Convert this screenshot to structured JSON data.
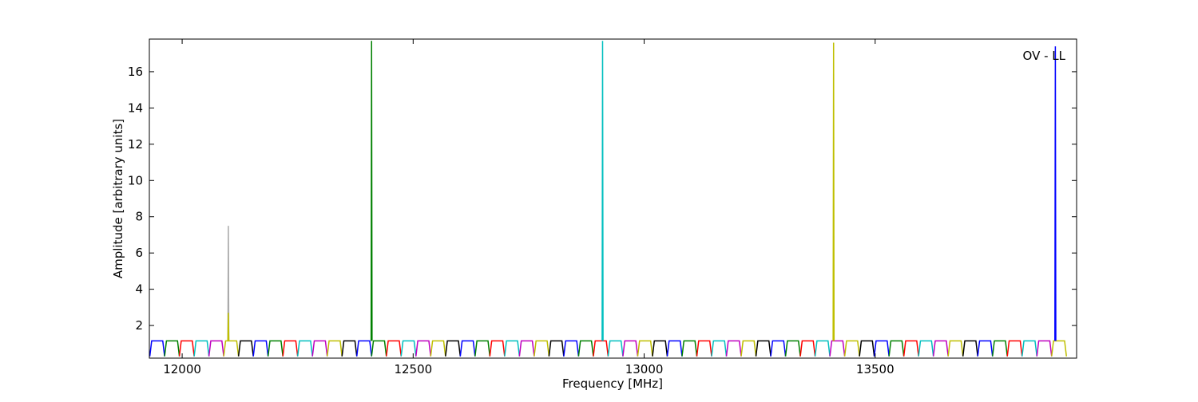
{
  "chart_data": {
    "type": "line",
    "x_label": "Frequency [MHz]",
    "y_label": "Amplitude [arbitrary units]",
    "annotation": "OV - LL",
    "xlim": [
      11929,
      13936
    ],
    "ylim": [
      0.2,
      17.8
    ],
    "xticks": [
      12000,
      12500,
      13000,
      13500
    ],
    "yticks": [
      2,
      4,
      6,
      8,
      10,
      12,
      14,
      16
    ],
    "series": [
      {
        "color": "#0000ff",
        "x": [
          11930,
          11934,
          11958,
          11962
        ],
        "values": [
          0.3,
          1.15,
          1.15,
          0.3
        ]
      },
      {
        "color": "#008000",
        "x": [
          11962,
          11966,
          11990,
          11994
        ],
        "values": [
          0.3,
          1.15,
          1.15,
          0.3
        ]
      },
      {
        "color": "#ff0000",
        "x": [
          11994,
          11998,
          12022,
          12026
        ],
        "values": [
          0.3,
          1.15,
          1.15,
          0.3
        ]
      },
      {
        "color": "#00bfbf",
        "x": [
          12026,
          12030,
          12054,
          12058
        ],
        "values": [
          0.3,
          1.15,
          1.15,
          0.3
        ]
      },
      {
        "color": "#bf00bf",
        "x": [
          12058,
          12062,
          12086,
          12090
        ],
        "values": [
          0.3,
          1.15,
          1.15,
          0.3
        ]
      },
      {
        "color": "#bfbf00",
        "x": [
          12090,
          12094,
          12118,
          12122
        ],
        "values": [
          0.3,
          1.15,
          1.15,
          0.3
        ]
      },
      {
        "color": "#000000",
        "x": [
          12122,
          12126,
          12150,
          12154
        ],
        "values": [
          0.3,
          1.15,
          1.15,
          0.3
        ]
      },
      {
        "color": "#0000ff",
        "x": [
          12154,
          12158,
          12182,
          12186
        ],
        "values": [
          0.3,
          1.15,
          1.15,
          0.3
        ]
      },
      {
        "color": "#008000",
        "x": [
          12186,
          12190,
          12214,
          12218
        ],
        "values": [
          0.3,
          1.15,
          1.15,
          0.3
        ]
      },
      {
        "color": "#ff0000",
        "x": [
          12218,
          12222,
          12246,
          12250
        ],
        "values": [
          0.3,
          1.15,
          1.15,
          0.3
        ]
      },
      {
        "color": "#00bfbf",
        "x": [
          12250,
          12254,
          12278,
          12282
        ],
        "values": [
          0.3,
          1.15,
          1.15,
          0.3
        ]
      },
      {
        "color": "#bf00bf",
        "x": [
          12282,
          12286,
          12310,
          12314
        ],
        "values": [
          0.3,
          1.15,
          1.15,
          0.3
        ]
      },
      {
        "color": "#bfbf00",
        "x": [
          12314,
          12318,
          12342,
          12346
        ],
        "values": [
          0.3,
          1.15,
          1.15,
          0.3
        ]
      },
      {
        "color": "#000000",
        "x": [
          12346,
          12350,
          12374,
          12378
        ],
        "values": [
          0.3,
          1.15,
          1.15,
          0.3
        ]
      },
      {
        "color": "#0000ff",
        "x": [
          12378,
          12382,
          12406,
          12410
        ],
        "values": [
          0.3,
          1.15,
          1.15,
          0.3
        ]
      },
      {
        "color": "#008000",
        "x": [
          12410,
          12414,
          12438,
          12442
        ],
        "values": [
          0.3,
          1.15,
          1.15,
          0.3
        ]
      },
      {
        "color": "#ff0000",
        "x": [
          12442,
          12446,
          12470,
          12474
        ],
        "values": [
          0.3,
          1.15,
          1.15,
          0.3
        ]
      },
      {
        "color": "#00bfbf",
        "x": [
          12474,
          12478,
          12502,
          12506
        ],
        "values": [
          0.3,
          1.15,
          1.15,
          0.3
        ]
      },
      {
        "color": "#bf00bf",
        "x": [
          12506,
          12510,
          12534,
          12538
        ],
        "values": [
          0.3,
          1.15,
          1.15,
          0.3
        ]
      },
      {
        "color": "#bfbf00",
        "x": [
          12538,
          12542,
          12566,
          12570
        ],
        "values": [
          0.3,
          1.15,
          1.15,
          0.3
        ]
      },
      {
        "color": "#000000",
        "x": [
          12570,
          12574,
          12598,
          12602
        ],
        "values": [
          0.3,
          1.15,
          1.15,
          0.3
        ]
      },
      {
        "color": "#0000ff",
        "x": [
          12602,
          12606,
          12630,
          12634
        ],
        "values": [
          0.3,
          1.15,
          1.15,
          0.3
        ]
      },
      {
        "color": "#008000",
        "x": [
          12634,
          12638,
          12662,
          12666
        ],
        "values": [
          0.3,
          1.15,
          1.15,
          0.3
        ]
      },
      {
        "color": "#ff0000",
        "x": [
          12666,
          12670,
          12694,
          12698
        ],
        "values": [
          0.3,
          1.15,
          1.15,
          0.3
        ]
      },
      {
        "color": "#00bfbf",
        "x": [
          12698,
          12702,
          12726,
          12730
        ],
        "values": [
          0.3,
          1.15,
          1.15,
          0.3
        ]
      },
      {
        "color": "#bf00bf",
        "x": [
          12730,
          12734,
          12758,
          12762
        ],
        "values": [
          0.3,
          1.15,
          1.15,
          0.3
        ]
      },
      {
        "color": "#bfbf00",
        "x": [
          12762,
          12766,
          12790,
          12794
        ],
        "values": [
          0.3,
          1.15,
          1.15,
          0.3
        ]
      },
      {
        "color": "#000000",
        "x": [
          12794,
          12798,
          12822,
          12826
        ],
        "values": [
          0.3,
          1.15,
          1.15,
          0.3
        ]
      },
      {
        "color": "#0000ff",
        "x": [
          12826,
          12830,
          12854,
          12858
        ],
        "values": [
          0.3,
          1.15,
          1.15,
          0.3
        ]
      },
      {
        "color": "#008000",
        "x": [
          12858,
          12862,
          12886,
          12890
        ],
        "values": [
          0.3,
          1.15,
          1.15,
          0.3
        ]
      },
      {
        "color": "#ff0000",
        "x": [
          12890,
          12894,
          12918,
          12922
        ],
        "values": [
          0.3,
          1.15,
          1.15,
          0.3
        ]
      },
      {
        "color": "#00bfbf",
        "x": [
          12922,
          12926,
          12950,
          12954
        ],
        "values": [
          0.3,
          1.15,
          1.15,
          0.3
        ]
      },
      {
        "color": "#bf00bf",
        "x": [
          12954,
          12958,
          12982,
          12986
        ],
        "values": [
          0.3,
          1.15,
          1.15,
          0.3
        ]
      },
      {
        "color": "#bfbf00",
        "x": [
          12986,
          12990,
          13014,
          13018
        ],
        "values": [
          0.3,
          1.15,
          1.15,
          0.3
        ]
      },
      {
        "color": "#000000",
        "x": [
          13018,
          13022,
          13046,
          13050
        ],
        "values": [
          0.3,
          1.15,
          1.15,
          0.3
        ]
      },
      {
        "color": "#0000ff",
        "x": [
          13050,
          13054,
          13078,
          13082
        ],
        "values": [
          0.3,
          1.15,
          1.15,
          0.3
        ]
      },
      {
        "color": "#008000",
        "x": [
          13082,
          13086,
          13110,
          13114
        ],
        "values": [
          0.3,
          1.15,
          1.15,
          0.3
        ]
      },
      {
        "color": "#ff0000",
        "x": [
          13114,
          13118,
          13142,
          13146
        ],
        "values": [
          0.3,
          1.15,
          1.15,
          0.3
        ]
      },
      {
        "color": "#00bfbf",
        "x": [
          13146,
          13150,
          13174,
          13178
        ],
        "values": [
          0.3,
          1.15,
          1.15,
          0.3
        ]
      },
      {
        "color": "#bf00bf",
        "x": [
          13178,
          13182,
          13206,
          13210
        ],
        "values": [
          0.3,
          1.15,
          1.15,
          0.3
        ]
      },
      {
        "color": "#bfbf00",
        "x": [
          13210,
          13214,
          13238,
          13242
        ],
        "values": [
          0.3,
          1.15,
          1.15,
          0.3
        ]
      },
      {
        "color": "#000000",
        "x": [
          13242,
          13246,
          13270,
          13274
        ],
        "values": [
          0.3,
          1.15,
          1.15,
          0.3
        ]
      },
      {
        "color": "#0000ff",
        "x": [
          13274,
          13278,
          13302,
          13306
        ],
        "values": [
          0.3,
          1.15,
          1.15,
          0.3
        ]
      },
      {
        "color": "#008000",
        "x": [
          13306,
          13310,
          13334,
          13338
        ],
        "values": [
          0.3,
          1.15,
          1.15,
          0.3
        ]
      },
      {
        "color": "#ff0000",
        "x": [
          13338,
          13342,
          13366,
          13370
        ],
        "values": [
          0.3,
          1.15,
          1.15,
          0.3
        ]
      },
      {
        "color": "#00bfbf",
        "x": [
          13370,
          13374,
          13398,
          13402
        ],
        "values": [
          0.3,
          1.15,
          1.15,
          0.3
        ]
      },
      {
        "color": "#bf00bf",
        "x": [
          13402,
          13406,
          13430,
          13434
        ],
        "values": [
          0.3,
          1.15,
          1.15,
          0.3
        ]
      },
      {
        "color": "#bfbf00",
        "x": [
          13434,
          13438,
          13462,
          13466
        ],
        "values": [
          0.3,
          1.15,
          1.15,
          0.3
        ]
      },
      {
        "color": "#000000",
        "x": [
          13466,
          13470,
          13494,
          13498
        ],
        "values": [
          0.3,
          1.15,
          1.15,
          0.3
        ]
      },
      {
        "color": "#0000ff",
        "x": [
          13498,
          13502,
          13526,
          13530
        ],
        "values": [
          0.3,
          1.15,
          1.15,
          0.3
        ]
      },
      {
        "color": "#008000",
        "x": [
          13530,
          13534,
          13558,
          13562
        ],
        "values": [
          0.3,
          1.15,
          1.15,
          0.3
        ]
      },
      {
        "color": "#ff0000",
        "x": [
          13562,
          13566,
          13590,
          13594
        ],
        "values": [
          0.3,
          1.15,
          1.15,
          0.3
        ]
      },
      {
        "color": "#00bfbf",
        "x": [
          13594,
          13598,
          13622,
          13626
        ],
        "values": [
          0.3,
          1.15,
          1.15,
          0.3
        ]
      },
      {
        "color": "#bf00bf",
        "x": [
          13626,
          13630,
          13654,
          13658
        ],
        "values": [
          0.3,
          1.15,
          1.15,
          0.3
        ]
      },
      {
        "color": "#bfbf00",
        "x": [
          13658,
          13662,
          13686,
          13690
        ],
        "values": [
          0.3,
          1.15,
          1.15,
          0.3
        ]
      },
      {
        "color": "#000000",
        "x": [
          13690,
          13694,
          13718,
          13722
        ],
        "values": [
          0.3,
          1.15,
          1.15,
          0.3
        ]
      },
      {
        "color": "#0000ff",
        "x": [
          13722,
          13726,
          13750,
          13754
        ],
        "values": [
          0.3,
          1.15,
          1.15,
          0.3
        ]
      },
      {
        "color": "#008000",
        "x": [
          13754,
          13758,
          13782,
          13786
        ],
        "values": [
          0.3,
          1.15,
          1.15,
          0.3
        ]
      },
      {
        "color": "#ff0000",
        "x": [
          13786,
          13790,
          13814,
          13818
        ],
        "values": [
          0.3,
          1.15,
          1.15,
          0.3
        ]
      },
      {
        "color": "#00bfbf",
        "x": [
          13818,
          13822,
          13846,
          13850
        ],
        "values": [
          0.3,
          1.15,
          1.15,
          0.3
        ]
      },
      {
        "color": "#bf00bf",
        "x": [
          13850,
          13854,
          13878,
          13882
        ],
        "values": [
          0.3,
          1.15,
          1.15,
          0.3
        ]
      },
      {
        "color": "#bfbf00",
        "x": [
          13882,
          13886,
          13910,
          13914
        ],
        "values": [
          0.3,
          1.15,
          1.15,
          0.3
        ]
      },
      {
        "color": "#aaaaaa",
        "x": [
          12099,
          12100,
          12101
        ],
        "values": [
          1.15,
          7.5,
          1.15
        ]
      },
      {
        "color": "#bfbf00",
        "x": [
          12099,
          12100,
          12101
        ],
        "values": [
          1.15,
          2.7,
          1.15
        ]
      },
      {
        "color": "#008000",
        "x": [
          12409,
          12410,
          12411
        ],
        "values": [
          1.15,
          17.7,
          1.15
        ]
      },
      {
        "color": "#00bfbf",
        "x": [
          12909,
          12910,
          12911
        ],
        "values": [
          1.15,
          17.7,
          1.15
        ]
      },
      {
        "color": "#bfbf00",
        "x": [
          13409,
          13410,
          13411
        ],
        "values": [
          1.15,
          17.6,
          1.15
        ]
      },
      {
        "color": "#0000ff",
        "x": [
          13889,
          13890,
          13891
        ],
        "values": [
          1.15,
          17.4,
          1.15
        ]
      }
    ]
  }
}
